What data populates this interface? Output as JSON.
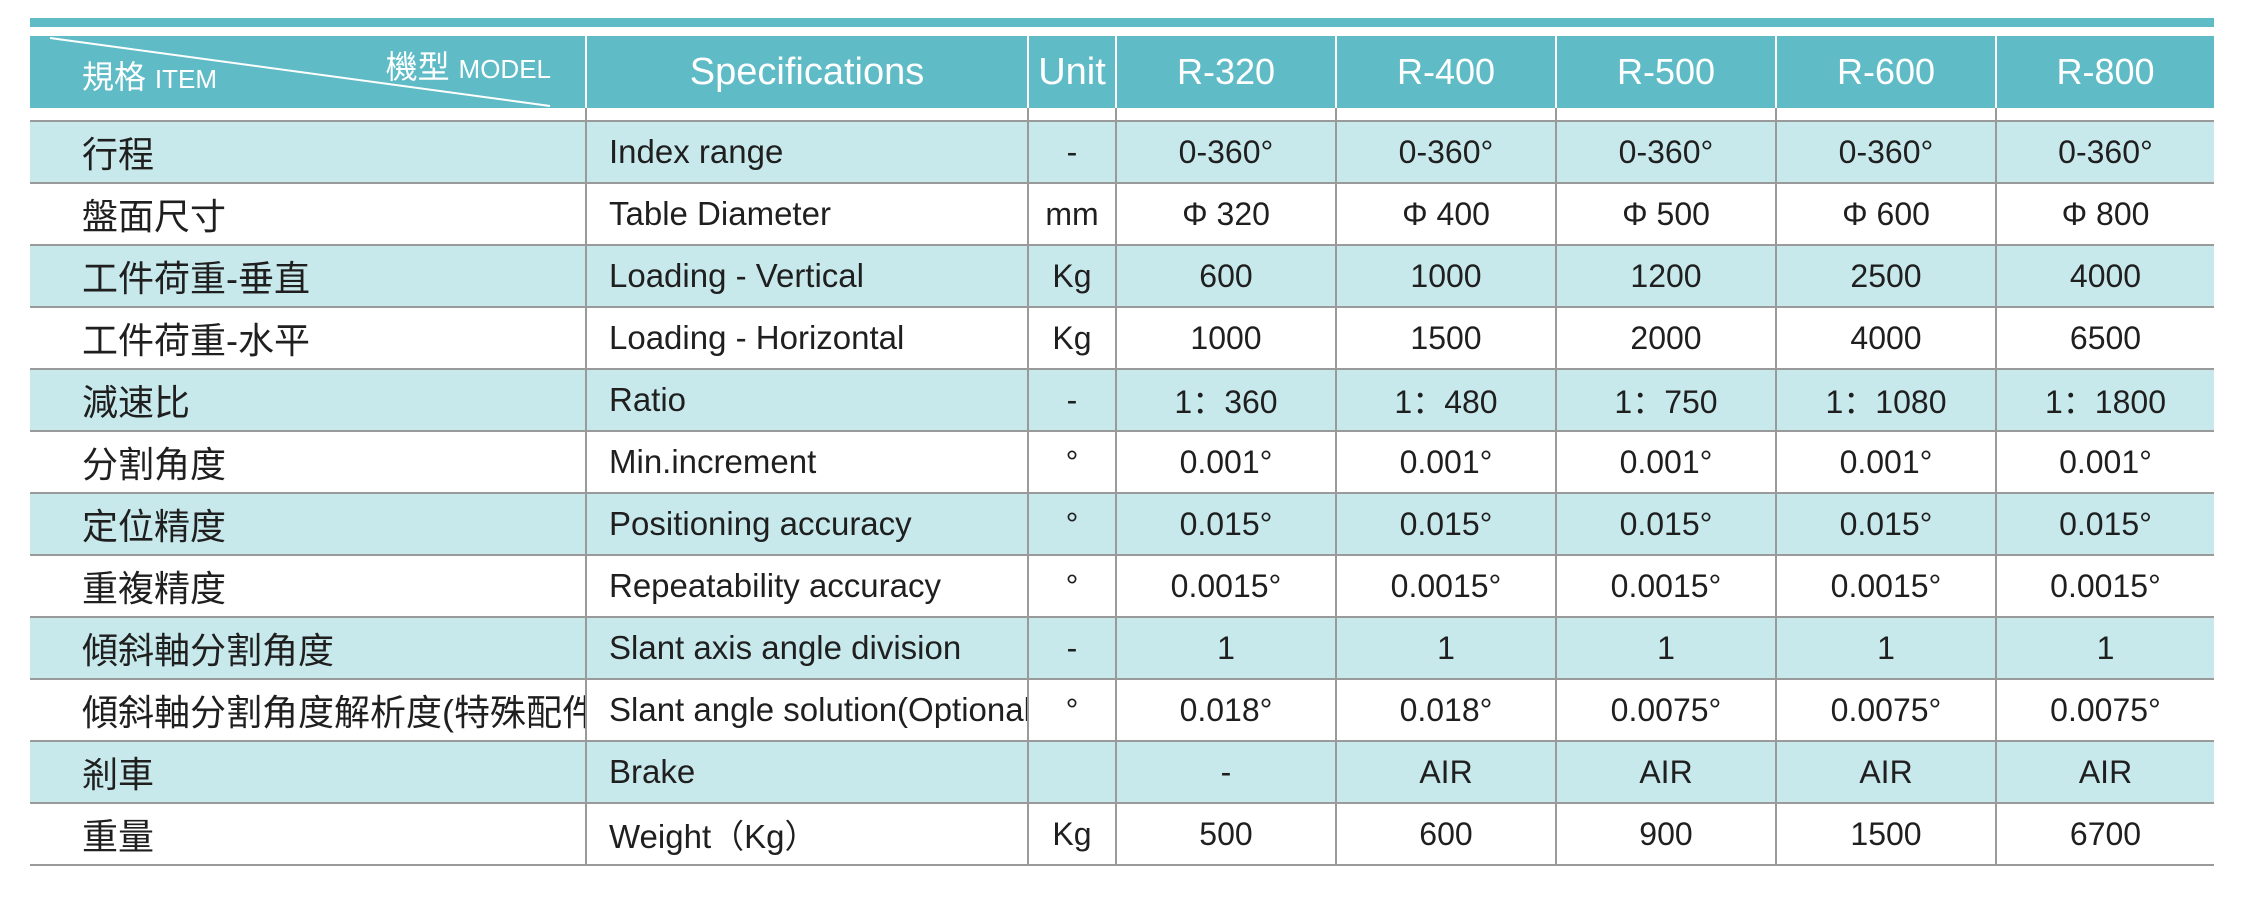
{
  "header": {
    "item_zh": "規格",
    "item_en": "ITEM",
    "model_zh": "機型",
    "model_en": "MODEL",
    "specifications": "Specifications",
    "unit": "Unit",
    "models": [
      "R-320",
      "R-400",
      "R-500",
      "R-600",
      "R-800"
    ]
  },
  "rows": [
    {
      "zh": "行程",
      "spec": "Index range",
      "unit": "-",
      "values": [
        "0-360°",
        "0-360°",
        "0-360°",
        "0-360°",
        "0-360°"
      ]
    },
    {
      "zh": "盤面尺寸",
      "spec": "Table Diameter",
      "unit": "mm",
      "values": [
        "Φ 320",
        "Φ 400",
        "Φ 500",
        "Φ 600",
        "Φ 800"
      ]
    },
    {
      "zh": "工件荷重-垂直",
      "spec": "Loading - Vertical",
      "unit": "Kg",
      "values": [
        "600",
        "1000",
        "1200",
        "2500",
        "4000"
      ]
    },
    {
      "zh": "工件荷重-水平",
      "spec": "Loading - Horizontal",
      "unit": "Kg",
      "values": [
        "1000",
        "1500",
        "2000",
        "4000",
        "6500"
      ]
    },
    {
      "zh": "減速比",
      "spec": "Ratio",
      "unit": "-",
      "values": [
        "1：360",
        "1：480",
        "1：750",
        "1：1080",
        "1：1800"
      ]
    },
    {
      "zh": "分割角度",
      "spec": "Min.increment",
      "unit": "°",
      "values": [
        "0.001°",
        "0.001°",
        "0.001°",
        "0.001°",
        "0.001°"
      ]
    },
    {
      "zh": "定位精度",
      "spec": "Positioning accuracy",
      "unit": "°",
      "values": [
        "0.015°",
        "0.015°",
        "0.015°",
        "0.015°",
        "0.015°"
      ]
    },
    {
      "zh": "重複精度",
      "spec": "Repeatability accuracy",
      "unit": "°",
      "values": [
        "0.0015°",
        "0.0015°",
        "0.0015°",
        "0.0015°",
        "0.0015°"
      ]
    },
    {
      "zh": "傾斜軸分割角度",
      "spec": "Slant axis angle division",
      "unit": "-",
      "values": [
        "1",
        "1",
        "1",
        "1",
        "1"
      ]
    },
    {
      "zh": "傾斜軸分割角度解析度(特殊配件)",
      "spec": "Slant angle solution(Optional)",
      "unit": "°",
      "values": [
        "0.018°",
        "0.018°",
        "0.0075°",
        "0.0075°",
        "0.0075°"
      ]
    },
    {
      "zh": "剎車",
      "spec": "Brake",
      "unit": "",
      "values": [
        "-",
        "AIR",
        "AIR",
        "AIR",
        "AIR"
      ]
    },
    {
      "zh": "重量",
      "spec": "Weight（Kg）",
      "unit": "Kg",
      "values": [
        "500",
        "600",
        "900",
        "1500",
        "6700"
      ]
    }
  ],
  "colors": {
    "header_bg": "#5fbcc7",
    "band_bg": "#c8e9ec",
    "text": "#1f1f1f"
  }
}
